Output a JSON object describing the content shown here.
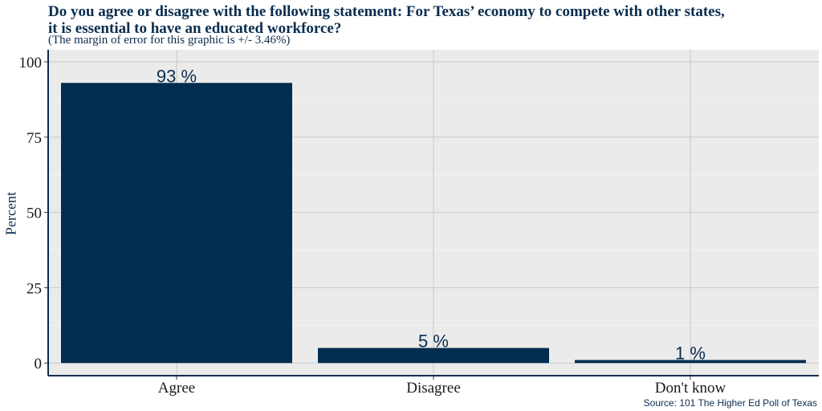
{
  "title_lines": [
    "Do you agree or disagree with the following statement: For Texas’ economy to compete with other states,",
    "it is essential to have an educated workforce?"
  ],
  "subtitle": "(The margin of error for this graphic is +/- 3.46%)",
  "source": "Source: 101 The Higher Ed Poll of Texas",
  "colors": {
    "bar": "#002d50",
    "panel": "#ebebeb",
    "grid": "#c9c9c9",
    "text": "#0b2d4f"
  },
  "chart_data": {
    "type": "bar",
    "categories": [
      "Agree",
      "Disagree",
      "Don't know"
    ],
    "values": [
      93,
      5,
      1
    ],
    "data_labels": [
      "93 %",
      "5 %",
      "1 %"
    ],
    "ylabel": "Percent",
    "xlabel": "",
    "ylim": [
      -4.2,
      104
    ],
    "yticks": [
      0,
      25,
      50,
      75,
      100
    ],
    "grid": true
  }
}
